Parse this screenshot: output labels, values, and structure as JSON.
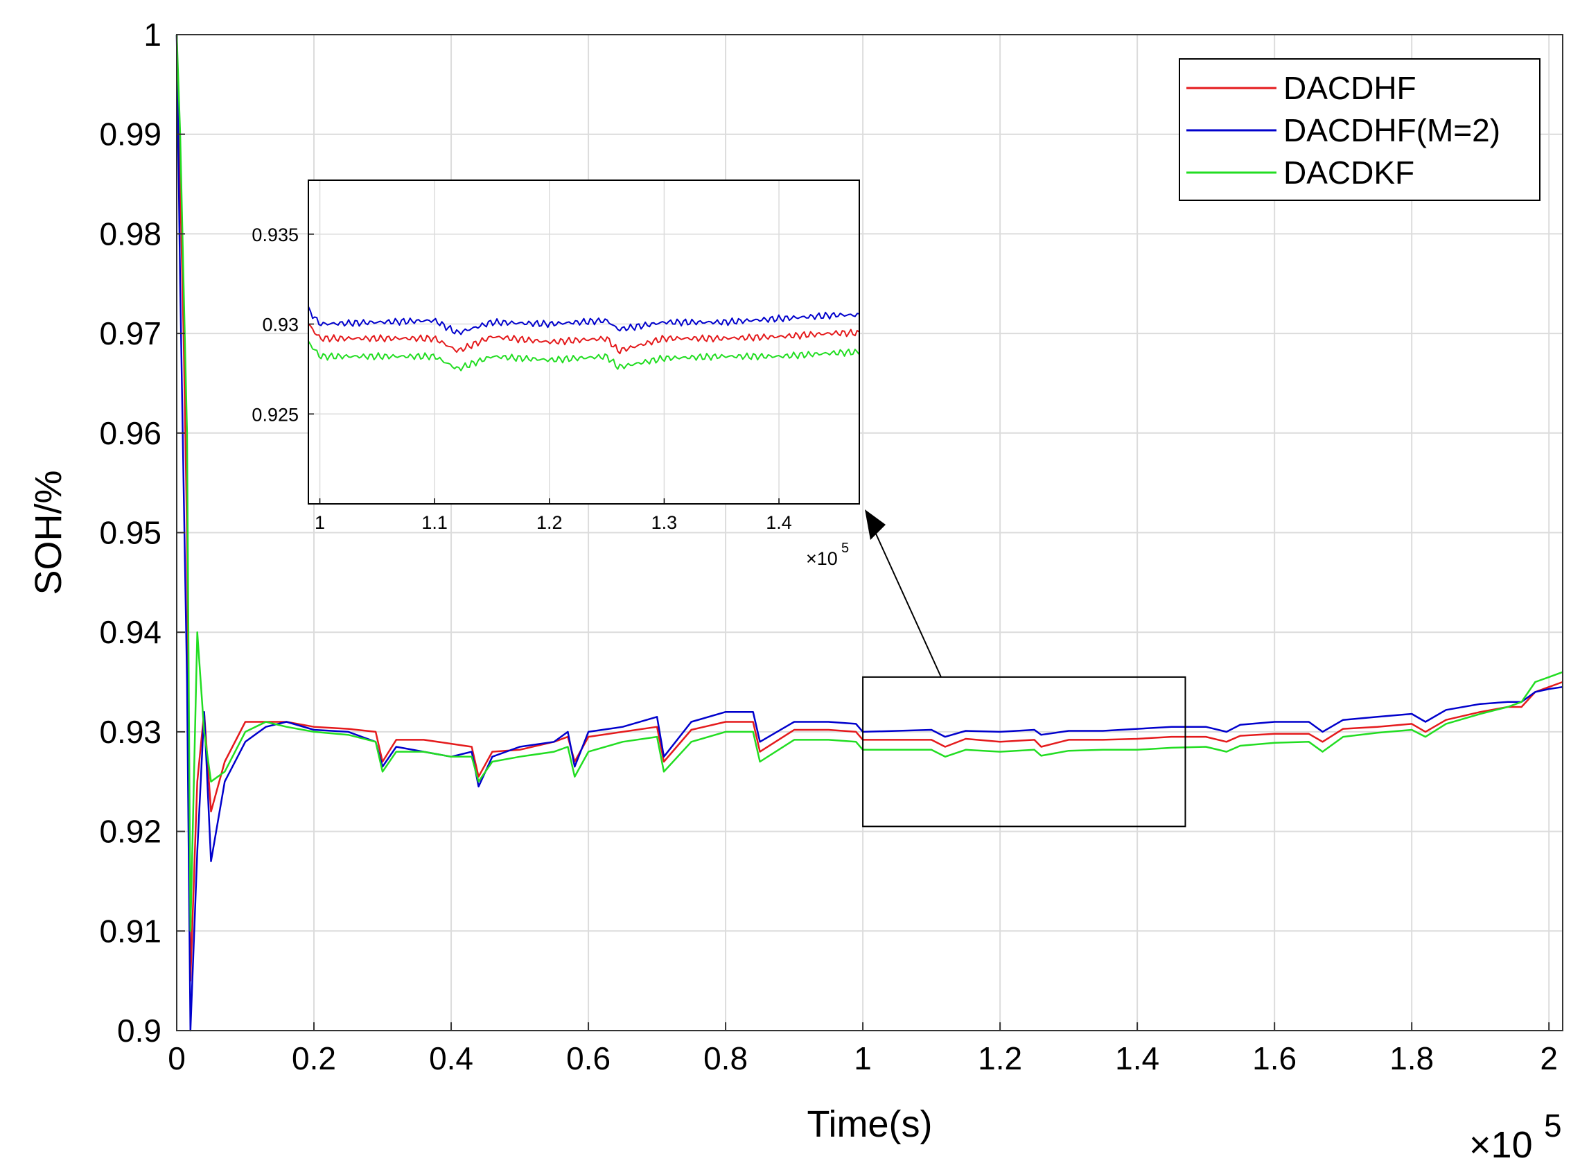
{
  "chart_data": {
    "type": "line",
    "title": "",
    "xlabel": "Time(s)",
    "ylabel": "SOH/%",
    "x_exponent_label": "×10",
    "x_exponent_power": "5",
    "xlim": [
      0,
      2.02
    ],
    "ylim": [
      0.9,
      1.0
    ],
    "x_ticks": [
      0,
      0.2,
      0.4,
      0.6,
      0.8,
      1.0,
      1.2,
      1.4,
      1.6,
      1.8,
      2.0
    ],
    "x_tick_labels": [
      "0",
      "0.2",
      "0.4",
      "0.6",
      "0.8",
      "1",
      "1.2",
      "1.4",
      "1.6",
      "1.8",
      "2"
    ],
    "y_ticks": [
      0.9,
      0.91,
      0.92,
      0.93,
      0.94,
      0.95,
      0.96,
      0.97,
      0.98,
      0.99,
      1.0
    ],
    "y_tick_labels": [
      "0.9",
      "0.91",
      "0.92",
      "0.93",
      "0.94",
      "0.95",
      "0.96",
      "0.97",
      "0.98",
      "0.99",
      "1"
    ],
    "grid": true,
    "legend_position": "top-right",
    "series": [
      {
        "name": "DACDHF",
        "color": "#e41a1c",
        "x": [
          0.0,
          0.005,
          0.01,
          0.015,
          0.02,
          0.03,
          0.04,
          0.05,
          0.07,
          0.1,
          0.13,
          0.16,
          0.2,
          0.25,
          0.29,
          0.3,
          0.32,
          0.36,
          0.4,
          0.43,
          0.44,
          0.46,
          0.5,
          0.55,
          0.57,
          0.58,
          0.6,
          0.65,
          0.7,
          0.71,
          0.75,
          0.8,
          0.84,
          0.85,
          0.9,
          0.95,
          0.99,
          1.0,
          1.05,
          1.1,
          1.12,
          1.15,
          1.2,
          1.25,
          1.26,
          1.3,
          1.35,
          1.4,
          1.45,
          1.5,
          1.53,
          1.55,
          1.6,
          1.65,
          1.67,
          1.7,
          1.75,
          1.8,
          1.82,
          1.85,
          1.9,
          1.94,
          1.96,
          1.98,
          2.0,
          2.02
        ],
        "y": [
          1.0,
          0.985,
          0.97,
          0.95,
          0.905,
          0.925,
          0.932,
          0.922,
          0.927,
          0.931,
          0.931,
          0.931,
          0.9305,
          0.9303,
          0.93,
          0.927,
          0.9292,
          0.9292,
          0.9288,
          0.9285,
          0.9255,
          0.928,
          0.9282,
          0.929,
          0.9295,
          0.927,
          0.9295,
          0.93,
          0.9305,
          0.927,
          0.9302,
          0.931,
          0.931,
          0.928,
          0.9302,
          0.9302,
          0.93,
          0.9292,
          0.9292,
          0.9292,
          0.9285,
          0.9293,
          0.929,
          0.9292,
          0.9285,
          0.9292,
          0.9292,
          0.9293,
          0.9295,
          0.9295,
          0.929,
          0.9296,
          0.9298,
          0.9298,
          0.929,
          0.9303,
          0.9305,
          0.9308,
          0.93,
          0.9312,
          0.932,
          0.9325,
          0.9325,
          0.934,
          0.9345,
          0.935
        ]
      },
      {
        "name": "DACDHF(M=2)",
        "color": "#0000cc",
        "x": [
          0.0,
          0.005,
          0.01,
          0.015,
          0.02,
          0.03,
          0.04,
          0.05,
          0.07,
          0.1,
          0.13,
          0.16,
          0.2,
          0.25,
          0.29,
          0.3,
          0.32,
          0.36,
          0.4,
          0.43,
          0.44,
          0.46,
          0.5,
          0.55,
          0.57,
          0.58,
          0.6,
          0.65,
          0.7,
          0.71,
          0.75,
          0.8,
          0.84,
          0.85,
          0.9,
          0.95,
          0.99,
          1.0,
          1.05,
          1.1,
          1.12,
          1.15,
          1.2,
          1.25,
          1.26,
          1.3,
          1.35,
          1.4,
          1.45,
          1.5,
          1.53,
          1.55,
          1.6,
          1.65,
          1.67,
          1.7,
          1.75,
          1.8,
          1.82,
          1.85,
          1.9,
          1.94,
          1.96,
          1.98,
          2.0,
          2.02
        ],
        "y": [
          1.0,
          0.975,
          0.955,
          0.935,
          0.9,
          0.918,
          0.932,
          0.917,
          0.925,
          0.929,
          0.9305,
          0.931,
          0.9302,
          0.93,
          0.929,
          0.9265,
          0.9285,
          0.928,
          0.9275,
          0.928,
          0.9245,
          0.9275,
          0.9285,
          0.929,
          0.93,
          0.9265,
          0.93,
          0.9305,
          0.9315,
          0.9275,
          0.931,
          0.932,
          0.932,
          0.929,
          0.931,
          0.931,
          0.9308,
          0.93,
          0.9301,
          0.9302,
          0.9295,
          0.9301,
          0.93,
          0.9302,
          0.9297,
          0.9301,
          0.9301,
          0.9303,
          0.9305,
          0.9305,
          0.93,
          0.9307,
          0.931,
          0.931,
          0.93,
          0.9312,
          0.9315,
          0.9318,
          0.931,
          0.9322,
          0.9328,
          0.933,
          0.933,
          0.934,
          0.9343,
          0.9345
        ]
      },
      {
        "name": "DACDKF",
        "color": "#22dd22",
        "x": [
          0.0,
          0.005,
          0.01,
          0.015,
          0.02,
          0.03,
          0.04,
          0.05,
          0.07,
          0.1,
          0.13,
          0.16,
          0.2,
          0.25,
          0.29,
          0.3,
          0.32,
          0.36,
          0.4,
          0.43,
          0.44,
          0.46,
          0.5,
          0.55,
          0.57,
          0.58,
          0.6,
          0.65,
          0.7,
          0.71,
          0.75,
          0.8,
          0.84,
          0.85,
          0.9,
          0.95,
          0.99,
          1.0,
          1.05,
          1.1,
          1.12,
          1.15,
          1.2,
          1.25,
          1.26,
          1.3,
          1.35,
          1.4,
          1.45,
          1.5,
          1.53,
          1.55,
          1.6,
          1.65,
          1.67,
          1.7,
          1.75,
          1.8,
          1.82,
          1.85,
          1.9,
          1.94,
          1.96,
          1.98,
          2.0,
          2.02
        ],
        "y": [
          1.0,
          0.99,
          0.975,
          0.96,
          0.91,
          0.94,
          0.93,
          0.925,
          0.926,
          0.93,
          0.931,
          0.9305,
          0.93,
          0.9297,
          0.929,
          0.926,
          0.928,
          0.928,
          0.9275,
          0.9275,
          0.925,
          0.927,
          0.9275,
          0.928,
          0.9285,
          0.9255,
          0.928,
          0.929,
          0.9295,
          0.926,
          0.929,
          0.93,
          0.93,
          0.927,
          0.9292,
          0.9292,
          0.929,
          0.9282,
          0.9282,
          0.9282,
          0.9275,
          0.9282,
          0.928,
          0.9282,
          0.9276,
          0.9281,
          0.9282,
          0.9282,
          0.9284,
          0.9285,
          0.928,
          0.9286,
          0.9289,
          0.929,
          0.928,
          0.9295,
          0.9299,
          0.9302,
          0.9295,
          0.9308,
          0.9318,
          0.9325,
          0.933,
          0.935,
          0.9355,
          0.936
        ]
      }
    ],
    "inset": {
      "xlim": [
        0.99,
        1.47
      ],
      "ylim": [
        0.92,
        0.938
      ],
      "x_ticks": [
        1.0,
        1.1,
        1.2,
        1.3,
        1.4
      ],
      "x_tick_labels": [
        "1",
        "1.1",
        "1.2",
        "1.3",
        "1.4"
      ],
      "y_ticks": [
        0.925,
        0.93,
        0.935
      ],
      "y_tick_labels": [
        "0.925",
        "0.93",
        "0.935"
      ],
      "x_exponent_label": "×10",
      "x_exponent_power": "5",
      "zoom_region": {
        "x": [
          1.0,
          1.47
        ],
        "y": [
          0.9205,
          0.9355
        ]
      }
    }
  }
}
